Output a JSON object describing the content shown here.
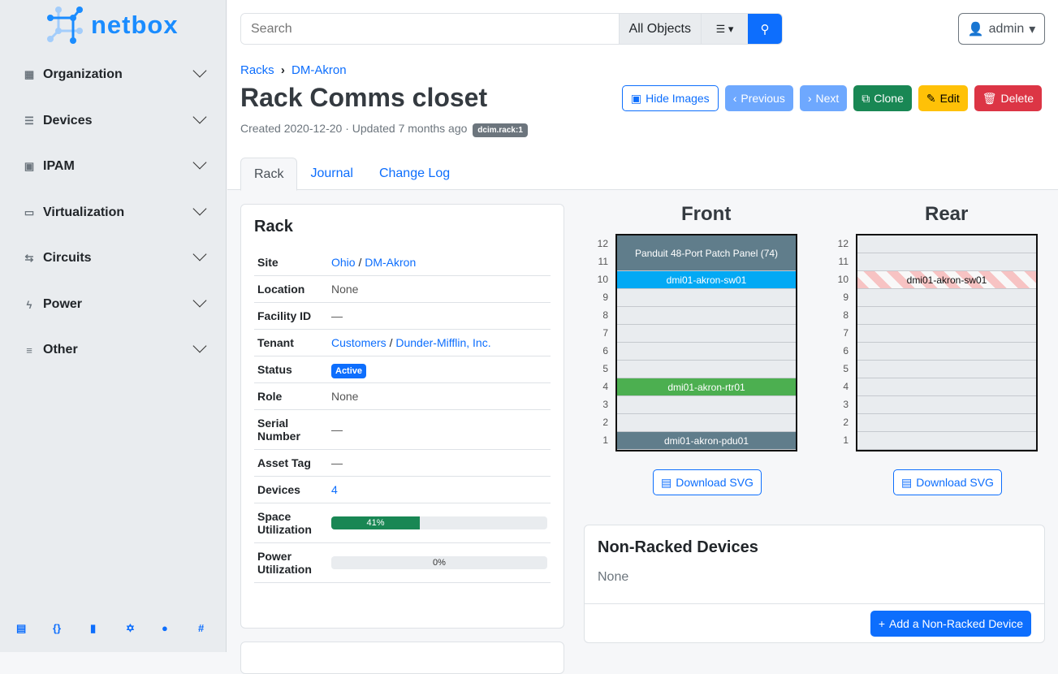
{
  "brand": "netbox",
  "sidebar": {
    "items": [
      {
        "label": "Organization",
        "icon": "building-icon"
      },
      {
        "label": "Devices",
        "icon": "server-icon"
      },
      {
        "label": "IPAM",
        "icon": "ip-icon"
      },
      {
        "label": "Virtualization",
        "icon": "monitor-icon"
      },
      {
        "label": "Circuits",
        "icon": "circuit-icon"
      },
      {
        "label": "Power",
        "icon": "bolt-icon"
      },
      {
        "label": "Other",
        "icon": "lines-icon"
      }
    ],
    "footer": [
      "docs-icon",
      "api-icon",
      "book-icon",
      "graphql-icon",
      "github-icon",
      "slack-icon"
    ]
  },
  "search": {
    "placeholder": "Search",
    "scope": "All Objects"
  },
  "user": "admin",
  "breadcrumb": [
    "Racks",
    "DM-Akron"
  ],
  "title": "Rack Comms closet",
  "meta": {
    "created": "Created 2020-12-20 · Updated 7 months ago",
    "tag": "dcim.rack:1"
  },
  "buttons": [
    {
      "label": "Hide Images",
      "icon": "image-icon",
      "style": "outline"
    },
    {
      "label": "Previous",
      "icon": "‹",
      "color": "#6ea8fe"
    },
    {
      "label": "Next",
      "icon": "›",
      "color": "#6ea8fe"
    },
    {
      "label": "Clone",
      "icon": "⧉",
      "color": "#198754"
    },
    {
      "label": "Edit",
      "icon": "✎",
      "color": "#ffc107"
    },
    {
      "label": "Delete",
      "icon": "🗑",
      "color": "#dc3545"
    }
  ],
  "tabs": [
    "Rack",
    "Journal",
    "Change Log"
  ],
  "rack_card": {
    "title": "Rack",
    "rows": {
      "site": {
        "k": "Site",
        "a": "Ohio",
        "b": "DM-Akron"
      },
      "location": {
        "k": "Location",
        "v": "None"
      },
      "facility": {
        "k": "Facility ID",
        "v": "—"
      },
      "tenant": {
        "k": "Tenant",
        "a": "Customers",
        "b": "Dunder-Mifflin, Inc."
      },
      "status": {
        "k": "Status",
        "v": "Active"
      },
      "role": {
        "k": "Role",
        "v": "None"
      },
      "serial": {
        "k": "Serial Number",
        "v": "—"
      },
      "asset": {
        "k": "Asset Tag",
        "v": "—"
      },
      "devices": {
        "k": "Devices",
        "v": "4"
      },
      "space": {
        "k": "Space Utilization",
        "v": "41%",
        "pct": 41
      },
      "power": {
        "k": "Power Utilization",
        "v": "0%",
        "pct": 0
      }
    }
  },
  "elevation": {
    "front_title": "Front",
    "rear_title": "Rear",
    "units": [
      12,
      11,
      10,
      9,
      8,
      7,
      6,
      5,
      4,
      3,
      2,
      1
    ],
    "front": [
      {
        "name": "Panduit 48-Port Patch Panel (74)",
        "top": 12,
        "height": 2,
        "color": "#607d8b"
      },
      {
        "name": "dmi01-akron-sw01",
        "top": 10,
        "height": 1,
        "color": "#03a9f4"
      },
      {
        "name": "dmi01-akron-rtr01",
        "top": 4,
        "height": 1,
        "color": "#4caf50"
      },
      {
        "name": "dmi01-akron-pdu01",
        "top": 1,
        "height": 1,
        "color": "#607d8b"
      }
    ],
    "rear": [
      {
        "name": "dmi01-akron-sw01",
        "top": 10,
        "height": 1,
        "color": "stripe"
      }
    ],
    "download": "Download SVG"
  },
  "nonracked": {
    "title": "Non-Racked Devices",
    "value": "None",
    "add": "Add a Non-Racked Device"
  }
}
